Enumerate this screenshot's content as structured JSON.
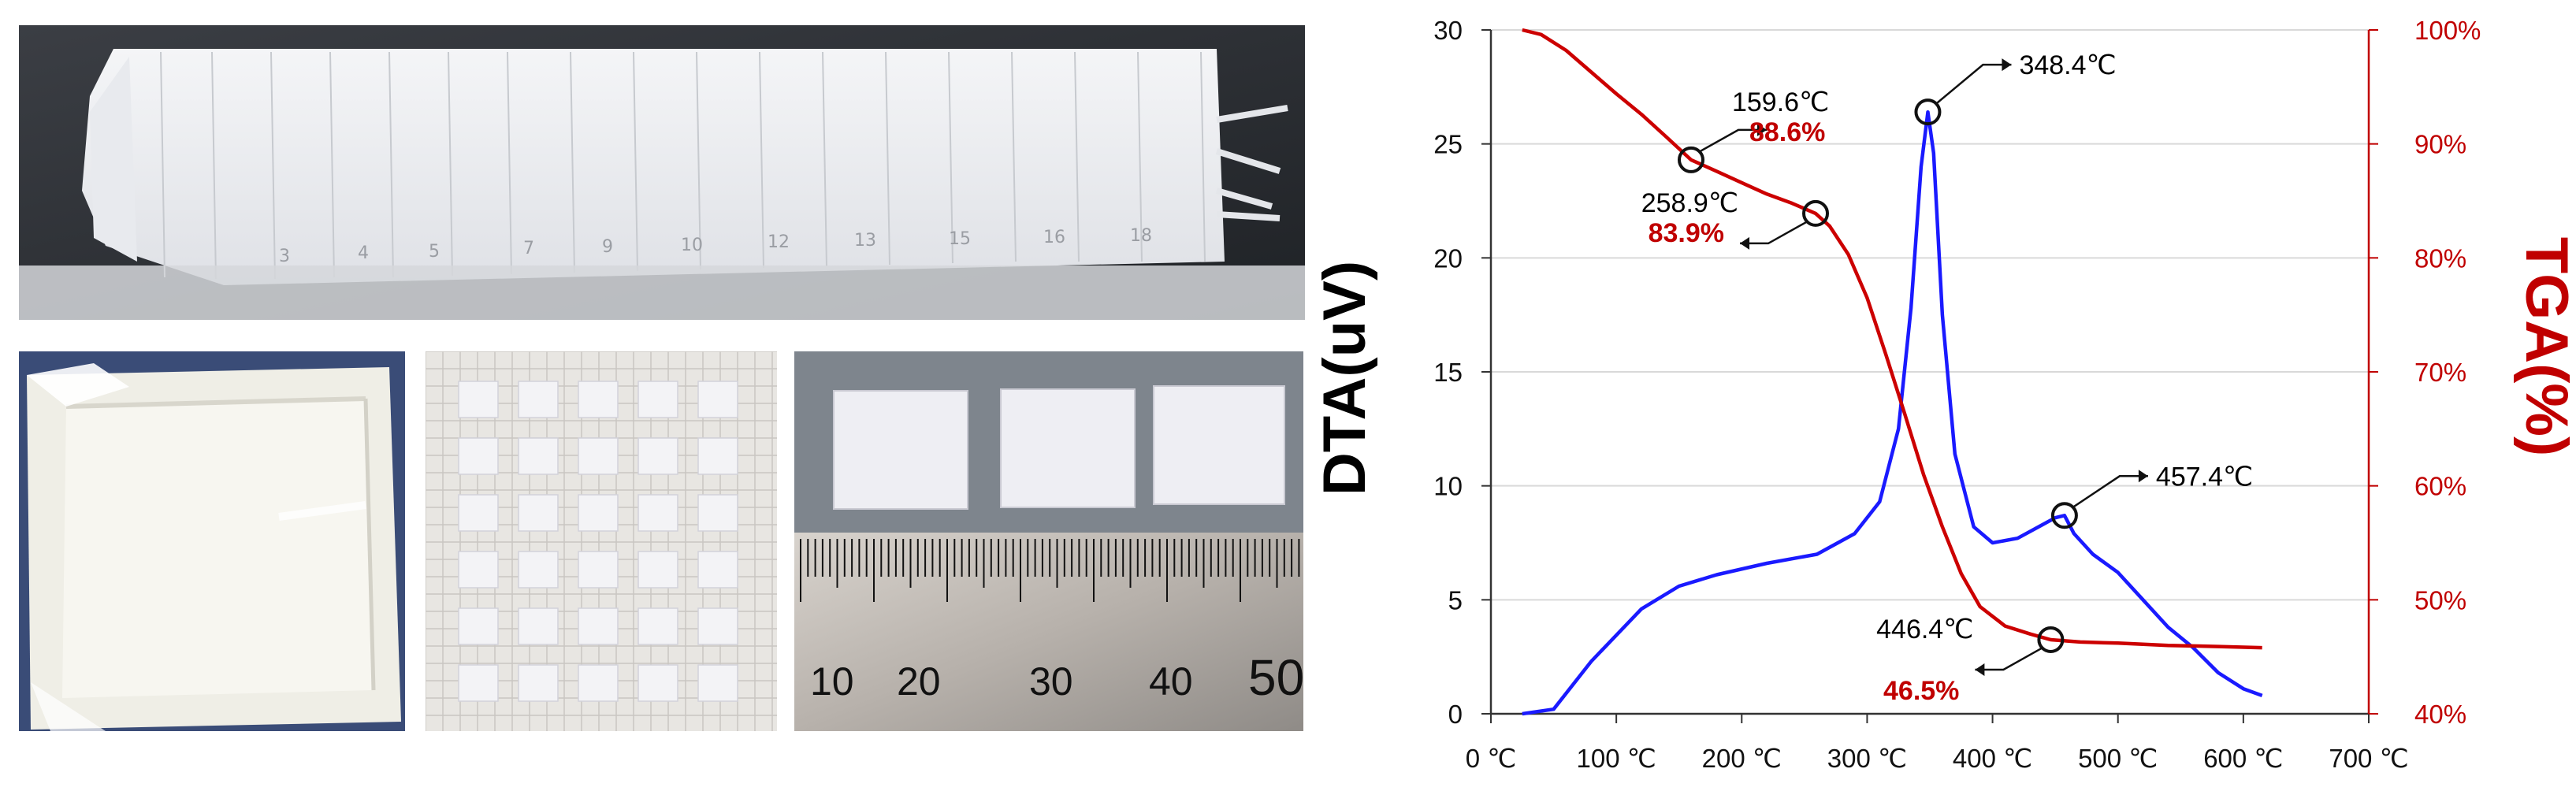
{
  "photos": [
    {
      "name": "photo-tape-strips",
      "icon": "ceramic-green-tape-strips-photo"
    },
    {
      "name": "photo-laminated-sheet",
      "icon": "laminated-ceramic-sheet-photo"
    },
    {
      "name": "photo-cut-samples-grid",
      "icon": "cut-square-samples-on-grid-photo"
    },
    {
      "name": "photo-samples-ruler",
      "icon": "square-samples-with-ruler-photo",
      "ruler_labels": [
        "10",
        "20",
        "30",
        "40",
        "50"
      ]
    }
  ],
  "chart_data": {
    "type": "line",
    "xlabel": "",
    "ylabel": "DTA(uV)",
    "y2label": "TGA(%)",
    "xlim": [
      0,
      700
    ],
    "ylim": [
      0,
      30
    ],
    "y2lim": [
      40,
      100
    ],
    "x_ticks": [
      "0 ℃",
      "100 ℃",
      "200 ℃",
      "300 ℃",
      "400 ℃",
      "500 ℃",
      "600 ℃",
      "700 ℃"
    ],
    "y_ticks": [
      "0",
      "5",
      "10",
      "15",
      "20",
      "25",
      "30"
    ],
    "y2_ticks": [
      "40%",
      "50%",
      "60%",
      "70%",
      "80%",
      "90%",
      "100%"
    ],
    "grid": true,
    "colors": {
      "dta": "#1a1aff",
      "tga": "#cc0000",
      "grid": "#d9d9d9",
      "axis_right": "#c00000"
    },
    "series": [
      {
        "key": "dta",
        "axis": "left",
        "x": [
          25,
          50,
          80,
          120,
          150,
          180,
          220,
          260,
          290,
          310,
          325,
          335,
          343,
          348.4,
          353,
          360,
          370,
          385,
          400,
          420,
          440,
          450,
          457.4,
          465,
          480,
          500,
          520,
          540,
          560,
          580,
          600,
          615
        ],
        "values": [
          -1,
          0.2,
          2.3,
          4.6,
          5.6,
          6.1,
          6.6,
          7.0,
          7.9,
          9.3,
          12.5,
          17.8,
          24.0,
          26.4,
          24.6,
          17.5,
          11.4,
          8.2,
          7.5,
          7.7,
          8.3,
          8.6,
          8.7,
          7.9,
          7.0,
          6.2,
          5.0,
          3.8,
          2.9,
          1.8,
          1.1,
          0.8
        ]
      },
      {
        "key": "tga",
        "axis": "right",
        "x": [
          25,
          40,
          60,
          80,
          100,
          120,
          140,
          159.6,
          180,
          200,
          220,
          240,
          258.9,
          270,
          285,
          300,
          315,
          330,
          345,
          360,
          375,
          390,
          410,
          430,
          446.4,
          470,
          500,
          540,
          580,
          615
        ],
        "values": [
          100,
          99.6,
          98.2,
          96.3,
          94.4,
          92.6,
          90.6,
          88.6,
          87.6,
          86.6,
          85.6,
          84.8,
          83.9,
          82.8,
          80.3,
          76.5,
          71.5,
          66.3,
          61.0,
          56.4,
          52.3,
          49.4,
          47.7,
          47.0,
          46.5,
          46.3,
          46.2,
          46.0,
          45.9,
          45.8
        ]
      }
    ],
    "annotations": [
      {
        "name": "anno-159",
        "axis": "right",
        "x": 159.6,
        "y": 88.6,
        "temp": "159.6℃",
        "pct": "88.6%"
      },
      {
        "name": "anno-258",
        "axis": "right",
        "x": 258.9,
        "y": 83.9,
        "temp": "258.9℃",
        "pct": "83.9%"
      },
      {
        "name": "anno-348",
        "axis": "left",
        "x": 348.4,
        "y": 26.4,
        "temp": "348.4℃",
        "pct": ""
      },
      {
        "name": "anno-446",
        "axis": "right",
        "x": 446.4,
        "y": 46.5,
        "temp": "446.4℃",
        "pct": "46.5%"
      },
      {
        "name": "anno-457",
        "axis": "left",
        "x": 457.4,
        "y": 8.7,
        "temp": "457.4℃",
        "pct": ""
      }
    ]
  }
}
